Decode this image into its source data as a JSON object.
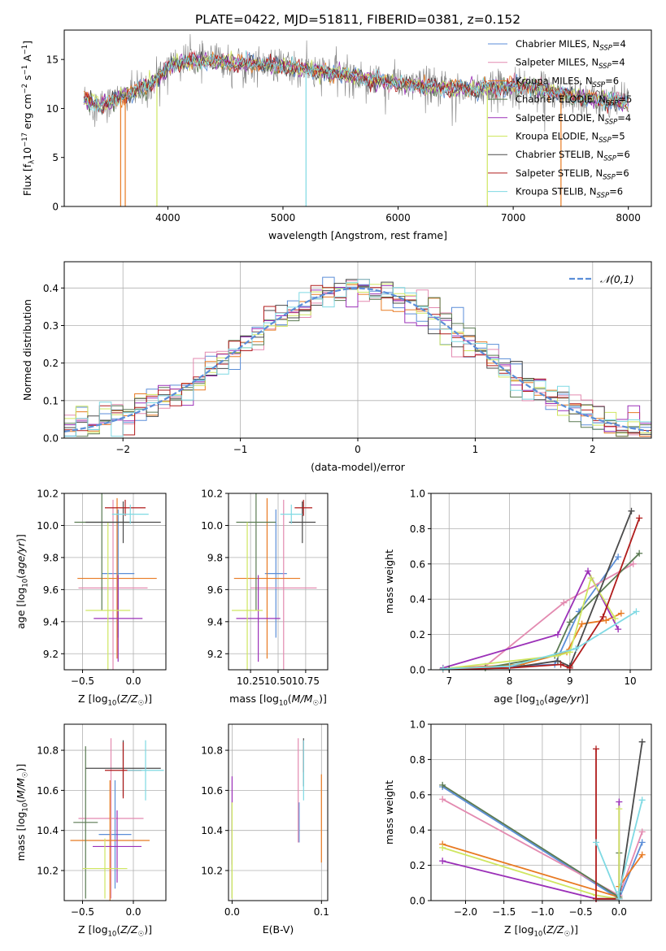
{
  "figure_title": "PLATE=0422, MJD=51811, FIBERID=0381, z=0.152",
  "colors": {
    "chabrier_miles": "#5b8ed8",
    "salpeter_miles": "#e38ab0",
    "kroupa_miles": "#e87a22",
    "chabrier_elodie": "#5a7a52",
    "salpeter_elodie": "#9b30b8",
    "kroupa_elodie": "#cfe660",
    "chabrier_stelib": "#4a4a4a",
    "salpeter_stelib": "#b01c1c",
    "kroupa_stelib": "#7fd9e3",
    "data": "#808080",
    "gauss": "#5b8ed8"
  },
  "chart_data": [
    {
      "id": "spectrum",
      "type": "line",
      "xlabel": "wavelength [Angstrom, rest frame]",
      "ylabel": "Flux [f_λ10^-17 erg cm^-2 s^-1 A^-1]",
      "xlim": [
        3100,
        8200
      ],
      "ylim": [
        0,
        18
      ],
      "xticks": [
        4000,
        5000,
        6000,
        7000,
        8000
      ],
      "yticks": [
        0,
        5,
        10,
        15
      ],
      "legend": {
        "placement": "right",
        "entries": [
          {
            "key": "chabrier_miles",
            "label": "Chabrier MILES, N",
            "sub": "SSP",
            "tail": "=4"
          },
          {
            "key": "salpeter_miles",
            "label": "Salpeter MILES, N",
            "sub": "SSP",
            "tail": "=4"
          },
          {
            "key": "kroupa_miles",
            "label": "Kroupa MILES, N",
            "sub": "SSP",
            "tail": "=6"
          },
          {
            "key": "chabrier_elodie",
            "label": "Chabrier ELODIE, N",
            "sub": "SSP",
            "tail": "=5"
          },
          {
            "key": "salpeter_elodie",
            "label": "Salpeter ELODIE, N",
            "sub": "SSP",
            "tail": "=4"
          },
          {
            "key": "kroupa_elodie",
            "label": "Kroupa ELODIE, N",
            "sub": "SSP",
            "tail": "=5"
          },
          {
            "key": "chabrier_stelib",
            "label": "Chabrier STELIB, N",
            "sub": "SSP",
            "tail": "=6"
          },
          {
            "key": "salpeter_stelib",
            "label": "Salpeter STELIB, N",
            "sub": "SSP",
            "tail": "=6"
          },
          {
            "key": "kroupa_stelib",
            "label": "Kroupa STELIB, N",
            "sub": "SSP",
            "tail": "=6"
          }
        ]
      },
      "continuum": [
        [
          3270,
          11.0
        ],
        [
          3400,
          10.3
        ],
        [
          3550,
          10.9
        ],
        [
          3700,
          11.6
        ],
        [
          3850,
          12.4
        ],
        [
          3950,
          13.6
        ],
        [
          4050,
          14.6
        ],
        [
          4200,
          14.9
        ],
        [
          4400,
          14.8
        ],
        [
          4600,
          14.6
        ],
        [
          4800,
          14.5
        ],
        [
          5000,
          14.3
        ],
        [
          5200,
          14.0
        ],
        [
          5400,
          13.7
        ],
        [
          5600,
          13.3
        ],
        [
          5800,
          12.9
        ],
        [
          6000,
          12.6
        ],
        [
          6200,
          12.3
        ],
        [
          6400,
          12.1
        ],
        [
          6600,
          12.0
        ],
        [
          6800,
          12.1
        ],
        [
          7000,
          12.3
        ],
        [
          7200,
          12.1
        ],
        [
          7400,
          11.6
        ],
        [
          7600,
          11.1
        ],
        [
          7800,
          10.8
        ],
        [
          8000,
          10.6
        ]
      ],
      "dips": [
        {
          "x": 3590,
          "ymin": 0,
          "series": "kroupa_miles"
        },
        {
          "x": 3630,
          "ymin": 0,
          "series": "kroupa_miles"
        },
        {
          "x": 3905,
          "ymin": 0,
          "series": "kroupa_elodie"
        },
        {
          "x": 5200,
          "ymin": 0,
          "series": "kroupa_stelib"
        },
        {
          "x": 6775,
          "ymin": 0,
          "series": "kroupa_elodie"
        },
        {
          "x": 7415,
          "ymin": 0,
          "series": "kroupa_miles"
        }
      ]
    },
    {
      "id": "residuals",
      "type": "bar",
      "xlabel": "(data-model)/error",
      "ylabel": "Normed distribution",
      "xlim": [
        -2.5,
        2.5
      ],
      "ylim": [
        0,
        0.47
      ],
      "xticks": [
        -2,
        -1,
        0,
        1,
        2
      ],
      "yticks": [
        0.0,
        0.1,
        0.2,
        0.3,
        0.4
      ],
      "legend": {
        "placement": "top-right",
        "label": "𝒩(0,1)"
      },
      "bin_width": 0.1
    },
    {
      "id": "age_vs_Z",
      "type": "scatter",
      "xlabel": "Z [log10(Z/Z☉)]",
      "ylabel": "age  [log10(age/yr)]",
      "xlim": [
        -0.68,
        0.32
      ],
      "ylim": [
        9.1,
        10.2
      ],
      "xticks": [
        -0.5,
        0.0
      ],
      "yticks": [
        9.2,
        9.4,
        9.6,
        9.8,
        10.0,
        10.2
      ],
      "points": [
        {
          "series": "chabrier_miles",
          "x": -0.15,
          "xerr": 0.16,
          "y": 9.7,
          "yerr": 0.4
        },
        {
          "series": "salpeter_miles",
          "x": -0.2,
          "xerr": 0.34,
          "y": 9.61,
          "yerr": 0.55
        },
        {
          "series": "kroupa_miles",
          "x": -0.16,
          "xerr": 0.39,
          "y": 9.67,
          "yerr": 0.5
        },
        {
          "series": "chabrier_elodie",
          "x": -0.31,
          "xerr": 0.27,
          "y": 10.02,
          "yerr": 0.55
        },
        {
          "series": "salpeter_elodie",
          "x": -0.15,
          "xerr": 0.24,
          "y": 9.42,
          "yerr": 0.27
        },
        {
          "series": "kroupa_elodie",
          "x": -0.25,
          "xerr": 0.22,
          "y": 9.47,
          "yerr": 0.55
        },
        {
          "series": "chabrier_stelib",
          "x": -0.1,
          "xerr": 0.37,
          "y": 10.02,
          "yerr": 0.13
        },
        {
          "series": "salpeter_stelib",
          "x": -0.08,
          "xerr": 0.2,
          "y": 10.11,
          "yerr": 0.05
        },
        {
          "series": "kroupa_stelib",
          "x": -0.03,
          "xerr": 0.18,
          "y": 10.07,
          "yerr": 0.06
        }
      ]
    },
    {
      "id": "age_vs_mass",
      "type": "scatter",
      "xlabel": "mass [log10(M/M☉)]",
      "ylabel": "",
      "xlim": [
        10.05,
        10.95
      ],
      "ylim": [
        9.1,
        10.2
      ],
      "xticks": [
        10.25,
        10.5,
        10.75
      ],
      "xtick_labels": [
        "10.25",
        "10.50",
        "10.75"
      ],
      "yticks": [
        9.2,
        9.4,
        9.6,
        9.8,
        10.0,
        10.2
      ],
      "points": [
        {
          "series": "chabrier_miles",
          "x": 10.48,
          "xerr": 0.1,
          "y": 9.7,
          "yerr": 0.4
        },
        {
          "series": "salpeter_miles",
          "x": 10.55,
          "xerr": 0.3,
          "y": 9.61,
          "yerr": 0.55
        },
        {
          "series": "kroupa_miles",
          "x": 10.4,
          "xerr": 0.3,
          "y": 9.67,
          "yerr": 0.5
        },
        {
          "series": "chabrier_elodie",
          "x": 10.3,
          "xerr": 0.18,
          "y": 10.02,
          "yerr": 0.55
        },
        {
          "series": "salpeter_elodie",
          "x": 10.32,
          "xerr": 0.2,
          "y": 9.42,
          "yerr": 0.27
        },
        {
          "series": "kroupa_elodie",
          "x": 10.22,
          "xerr": 0.14,
          "y": 9.47,
          "yerr": 0.55
        },
        {
          "series": "chabrier_stelib",
          "x": 10.72,
          "xerr": 0.12,
          "y": 10.02,
          "yerr": 0.13
        },
        {
          "series": "salpeter_stelib",
          "x": 10.73,
          "xerr": 0.08,
          "y": 10.11,
          "yerr": 0.05
        },
        {
          "series": "kroupa_stelib",
          "x": 10.62,
          "xerr": 0.1,
          "y": 10.07,
          "yerr": 0.06
        }
      ]
    },
    {
      "id": "weight_vs_age",
      "type": "line",
      "xlabel": "age  [log10(age/yr)]",
      "ylabel": "mass weight",
      "xlim": [
        6.7,
        10.35
      ],
      "ylim": [
        0,
        1.0
      ],
      "xticks": [
        7,
        8,
        9,
        10
      ],
      "yticks": [
        0.0,
        0.2,
        0.4,
        0.6,
        0.8,
        1.0
      ],
      "series": [
        {
          "key": "chabrier_miles",
          "x": [
            6.9,
            8.75,
            9.15,
            9.8
          ],
          "y": [
            0.005,
            0.03,
            0.33,
            0.64
          ]
        },
        {
          "key": "salpeter_miles",
          "x": [
            6.9,
            7.6,
            8.9,
            10.05
          ],
          "y": [
            0.005,
            0.02,
            0.38,
            0.6
          ]
        },
        {
          "key": "kroupa_miles",
          "x": [
            6.9,
            8.2,
            8.95,
            9.2,
            9.6,
            9.85
          ],
          "y": [
            0.005,
            0.03,
            0.1,
            0.26,
            0.28,
            0.32
          ]
        },
        {
          "key": "chabrier_elodie",
          "x": [
            6.9,
            7.6,
            8.75,
            9.0,
            10.15
          ],
          "y": [
            0.005,
            0.01,
            0.08,
            0.27,
            0.66
          ]
        },
        {
          "key": "salpeter_elodie",
          "x": [
            6.9,
            8.8,
            9.3,
            9.8
          ],
          "y": [
            0.01,
            0.2,
            0.56,
            0.23
          ]
        },
        {
          "key": "kroupa_elodie",
          "x": [
            6.9,
            8.8,
            9.0,
            9.35,
            9.75
          ],
          "y": [
            0.005,
            0.08,
            0.1,
            0.52,
            0.29
          ]
        },
        {
          "key": "chabrier_stelib",
          "x": [
            7.0,
            8.0,
            8.8,
            9.0,
            10.02
          ],
          "y": [
            0.005,
            0.01,
            0.05,
            0.02,
            0.9
          ]
        },
        {
          "key": "salpeter_stelib",
          "x": [
            6.9,
            8.0,
            8.85,
            9.0,
            9.55,
            10.15
          ],
          "y": [
            0.003,
            0.01,
            0.03,
            0.01,
            0.3,
            0.86
          ]
        },
        {
          "key": "kroupa_stelib",
          "x": [
            6.9,
            8.0,
            9.1,
            10.1
          ],
          "y": [
            0.005,
            0.02,
            0.12,
            0.33
          ]
        }
      ]
    },
    {
      "id": "mass_vs_Z",
      "type": "scatter",
      "xlabel": "Z [log10(Z/Z☉)]",
      "ylabel": "mass [log10(M/M☉)]",
      "xlim": [
        -0.68,
        0.32
      ],
      "ylim": [
        10.05,
        10.93
      ],
      "xticks": [
        -0.5,
        0.0
      ],
      "yticks": [
        10.2,
        10.4,
        10.6,
        10.8
      ],
      "points": [
        {
          "series": "chabrier_miles",
          "x": -0.18,
          "xerr": 0.16,
          "y": 10.38,
          "yerr": 0.27
        },
        {
          "series": "salpeter_miles",
          "x": -0.22,
          "xerr": 0.32,
          "y": 10.46,
          "yerr": 0.4
        },
        {
          "series": "kroupa_miles",
          "x": -0.23,
          "xerr": 0.39,
          "y": 10.35,
          "yerr": 0.3
        },
        {
          "series": "chabrier_elodie",
          "x": -0.47,
          "xerr": 0.12,
          "y": 10.44,
          "yerr": 0.38
        },
        {
          "series": "salpeter_elodie",
          "x": -0.16,
          "xerr": 0.24,
          "y": 10.32,
          "yerr": 0.18
        },
        {
          "series": "kroupa_elodie",
          "x": -0.28,
          "xerr": 0.22,
          "y": 10.21,
          "yerr": 0.15
        },
        {
          "series": "chabrier_stelib",
          "x": -0.1,
          "xerr": 0.37,
          "y": 10.71,
          "yerr": 0.14
        },
        {
          "series": "salpeter_stelib",
          "x": -0.1,
          "xerr": 0.18,
          "y": 10.7,
          "yerr": 0.14
        },
        {
          "series": "kroupa_stelib",
          "x": 0.12,
          "xerr": 0.18,
          "y": 10.7,
          "yerr": 0.15
        }
      ]
    },
    {
      "id": "mass_vs_ebv",
      "type": "scatter",
      "xlabel": "E(B-V)",
      "ylabel": "",
      "xlim": [
        -0.004,
        0.107
      ],
      "ylim": [
        10.05,
        10.93
      ],
      "xticks": [
        0.0,
        0.1
      ],
      "yticks": [
        10.2,
        10.4,
        10.6,
        10.8
      ],
      "points": [
        {
          "series": "chabrier_miles",
          "x": 0.075,
          "xerr": 0,
          "y": 10.44,
          "yerr": 0.1
        },
        {
          "series": "salpeter_miles",
          "x": 0.074,
          "xerr": 0,
          "y": 10.6,
          "yerr": 0.26
        },
        {
          "series": "kroupa_miles",
          "x": 0.1,
          "xerr": 0,
          "y": 10.46,
          "yerr": 0.22
        },
        {
          "series": "chabrier_elodie",
          "x": 0.0,
          "xerr": 0,
          "y": 10.3,
          "yerr": 0.24
        },
        {
          "series": "salpeter_elodie",
          "x": 0.0,
          "xerr": 0,
          "y": 10.45,
          "yerr": 0.22
        },
        {
          "series": "kroupa_elodie",
          "x": 0.0,
          "xerr": 0,
          "y": 10.3,
          "yerr": 0.24
        },
        {
          "series": "chabrier_stelib",
          "x": 0.08,
          "xerr": 0,
          "y": 10.74,
          "yerr": 0.12
        },
        {
          "series": "salpeter_stelib",
          "x": 0.08,
          "xerr": 0,
          "y": 10.77,
          "yerr": 0.08
        },
        {
          "series": "kroupa_stelib",
          "x": 0.08,
          "xerr": 0,
          "y": 10.7,
          "yerr": 0.15
        }
      ]
    },
    {
      "id": "weight_vs_Z",
      "type": "line",
      "xlabel": "Z [log10(Z/Z☉)]",
      "ylabel": "mass weight",
      "xlim": [
        -2.45,
        0.42
      ],
      "ylim": [
        0,
        1.0
      ],
      "xticks": [
        -2.0,
        -1.5,
        -1.0,
        -0.5,
        0.0
      ],
      "yticks": [
        0.0,
        0.2,
        0.4,
        0.6,
        0.8,
        1.0
      ],
      "series": [
        {
          "key": "chabrier_miles",
          "x": [
            -2.3,
            0.0,
            0.0,
            0.3
          ],
          "y": [
            0.645,
            0.01,
            0.01,
            0.33
          ]
        },
        {
          "key": "salpeter_miles",
          "x": [
            -2.3,
            0.0,
            0.0,
            0.3
          ],
          "y": [
            0.575,
            0.03,
            0.03,
            0.39
          ]
        },
        {
          "key": "kroupa_miles",
          "x": [
            -2.3,
            0.0,
            0.0,
            0.3
          ],
          "y": [
            0.32,
            0.02,
            0.08,
            0.26
          ]
        },
        {
          "key": "chabrier_elodie",
          "x": [
            -2.3,
            0.0,
            0.0
          ],
          "y": [
            0.655,
            0.02,
            0.27
          ]
        },
        {
          "key": "salpeter_elodie",
          "x": [
            -2.3,
            -0.3,
            0.0,
            0.0
          ],
          "y": [
            0.225,
            0.01,
            0.01,
            0.56
          ]
        },
        {
          "key": "kroupa_elodie",
          "x": [
            -2.3,
            -0.3,
            0.0,
            0.0
          ],
          "y": [
            0.3,
            0.03,
            0.01,
            0.52
          ]
        },
        {
          "key": "chabrier_stelib",
          "x": [
            -0.3,
            0.0,
            0.0,
            0.3
          ],
          "y": [
            0.01,
            0.01,
            0.01,
            0.9
          ]
        },
        {
          "key": "salpeter_stelib",
          "x": [
            -0.3,
            -0.3,
            0.0
          ],
          "y": [
            0.86,
            0.01,
            0.01
          ]
        },
        {
          "key": "kroupa_stelib",
          "x": [
            -0.3,
            0.0,
            0.0,
            0.3
          ],
          "y": [
            0.33,
            0.01,
            0.05,
            0.57
          ]
        }
      ]
    }
  ]
}
